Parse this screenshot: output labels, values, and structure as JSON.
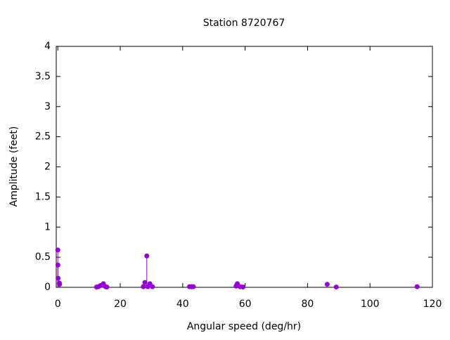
{
  "chart_data": {
    "type": "impulse",
    "title": "Station 8720767",
    "x_label": "Angular speed (deg/hr)",
    "y_label": "Amplitude (feet)",
    "x": [
      0,
      0.04,
      0.08,
      0.5,
      0.55,
      12.4,
      13.0,
      13.7,
      14.6,
      15.3,
      15.7,
      27.4,
      27.9,
      28.5,
      28.8,
      29.5,
      30.3,
      42.2,
      42.9,
      43.4,
      57.1,
      57.5,
      58.4,
      59.3,
      86.3,
      89.2,
      115.1
    ],
    "values": [
      0.62,
      0.37,
      0.15,
      0.07,
      0.05,
      0.005,
      0.01,
      0.03,
      0.06,
      0.01,
      0.005,
      0.01,
      0.08,
      0.52,
      0.01,
      0.06,
      0.01,
      0.01,
      0.01,
      0.01,
      0.02,
      0.06,
      0.01,
      0.005,
      0.05,
      0.005,
      0.01
    ],
    "color": "#9400d3",
    "xlim": [
      -0.5,
      120
    ],
    "xticks": [
      0,
      20,
      40,
      60,
      80,
      100,
      120
    ],
    "ylim": [
      0,
      4
    ],
    "yticks": [
      0,
      0.5,
      1,
      1.5,
      2,
      2.5,
      3,
      3.5,
      4
    ]
  }
}
